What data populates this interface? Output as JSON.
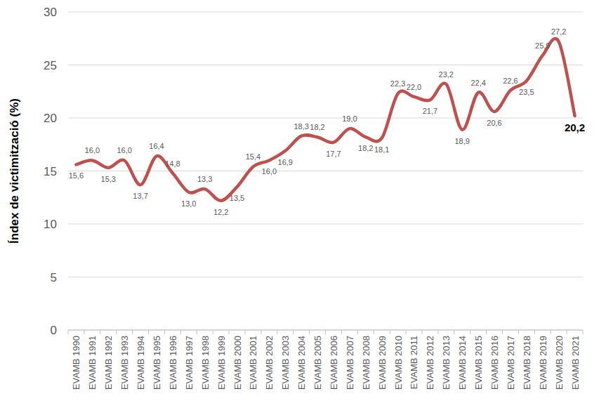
{
  "chart_data": {
    "type": "line",
    "y_label": "Índex de victimització (%)",
    "categories": [
      "EVAMB 1990",
      "EVAMB 1991",
      "EVAMB 1992",
      "EVAMB 1993",
      "EVAMB 1994",
      "EVAMB 1995",
      "EVAMB 1996",
      "EVAMB 1997",
      "EVAMB 1998",
      "EVAMB 1999",
      "EVAMB 2000",
      "EVAMB 2001",
      "EVAMB 2002",
      "EVAMB 2003",
      "EVAMB 2004",
      "EVAMB 2005",
      "EVAMB 2006",
      "EVAMB 2007",
      "EVAMB 2008",
      "EVAMB 2009",
      "EVAMB 2010",
      "EVAMB 2011",
      "EVAMB 2012",
      "EVAMB 2013",
      "EVAMB 2014",
      "EVAMB 2015",
      "EVAMB 2016",
      "EVAMB 2017",
      "EVAMB 2018",
      "EVAMB 2019",
      "EVAMB 2020",
      "EVAMB 2021"
    ],
    "values": [
      15.6,
      16.0,
      15.3,
      16.0,
      13.7,
      16.4,
      14.8,
      13.0,
      13.3,
      12.2,
      13.5,
      15.4,
      16.0,
      16.9,
      18.3,
      18.2,
      17.7,
      19.0,
      18.2,
      18.1,
      22.3,
      22.0,
      21.7,
      23.2,
      18.9,
      22.4,
      20.6,
      22.6,
      23.5,
      25.9,
      27.2,
      20.2
    ],
    "value_labels": [
      "15,6",
      "16,0",
      "15,3",
      "16,0",
      "13,7",
      "16,4",
      "14,8",
      "13,0",
      "13,3",
      "12,2",
      "13,5",
      "15,4",
      "16,0",
      "16,9",
      "18,3",
      "18,2",
      "17,7",
      "19,0",
      "18,2",
      "18,1",
      "22,3",
      "22,0",
      "21,7",
      "23,2",
      "18,9",
      "22,4",
      "20,6",
      "22,6",
      "23,5",
      "25,9",
      "27,2",
      "20,2"
    ],
    "color": "#c0504d",
    "ylim": [
      0,
      30
    ],
    "yticks": [
      0,
      5,
      10,
      15,
      20,
      25,
      30
    ],
    "grid": true,
    "data_labels": true
  }
}
